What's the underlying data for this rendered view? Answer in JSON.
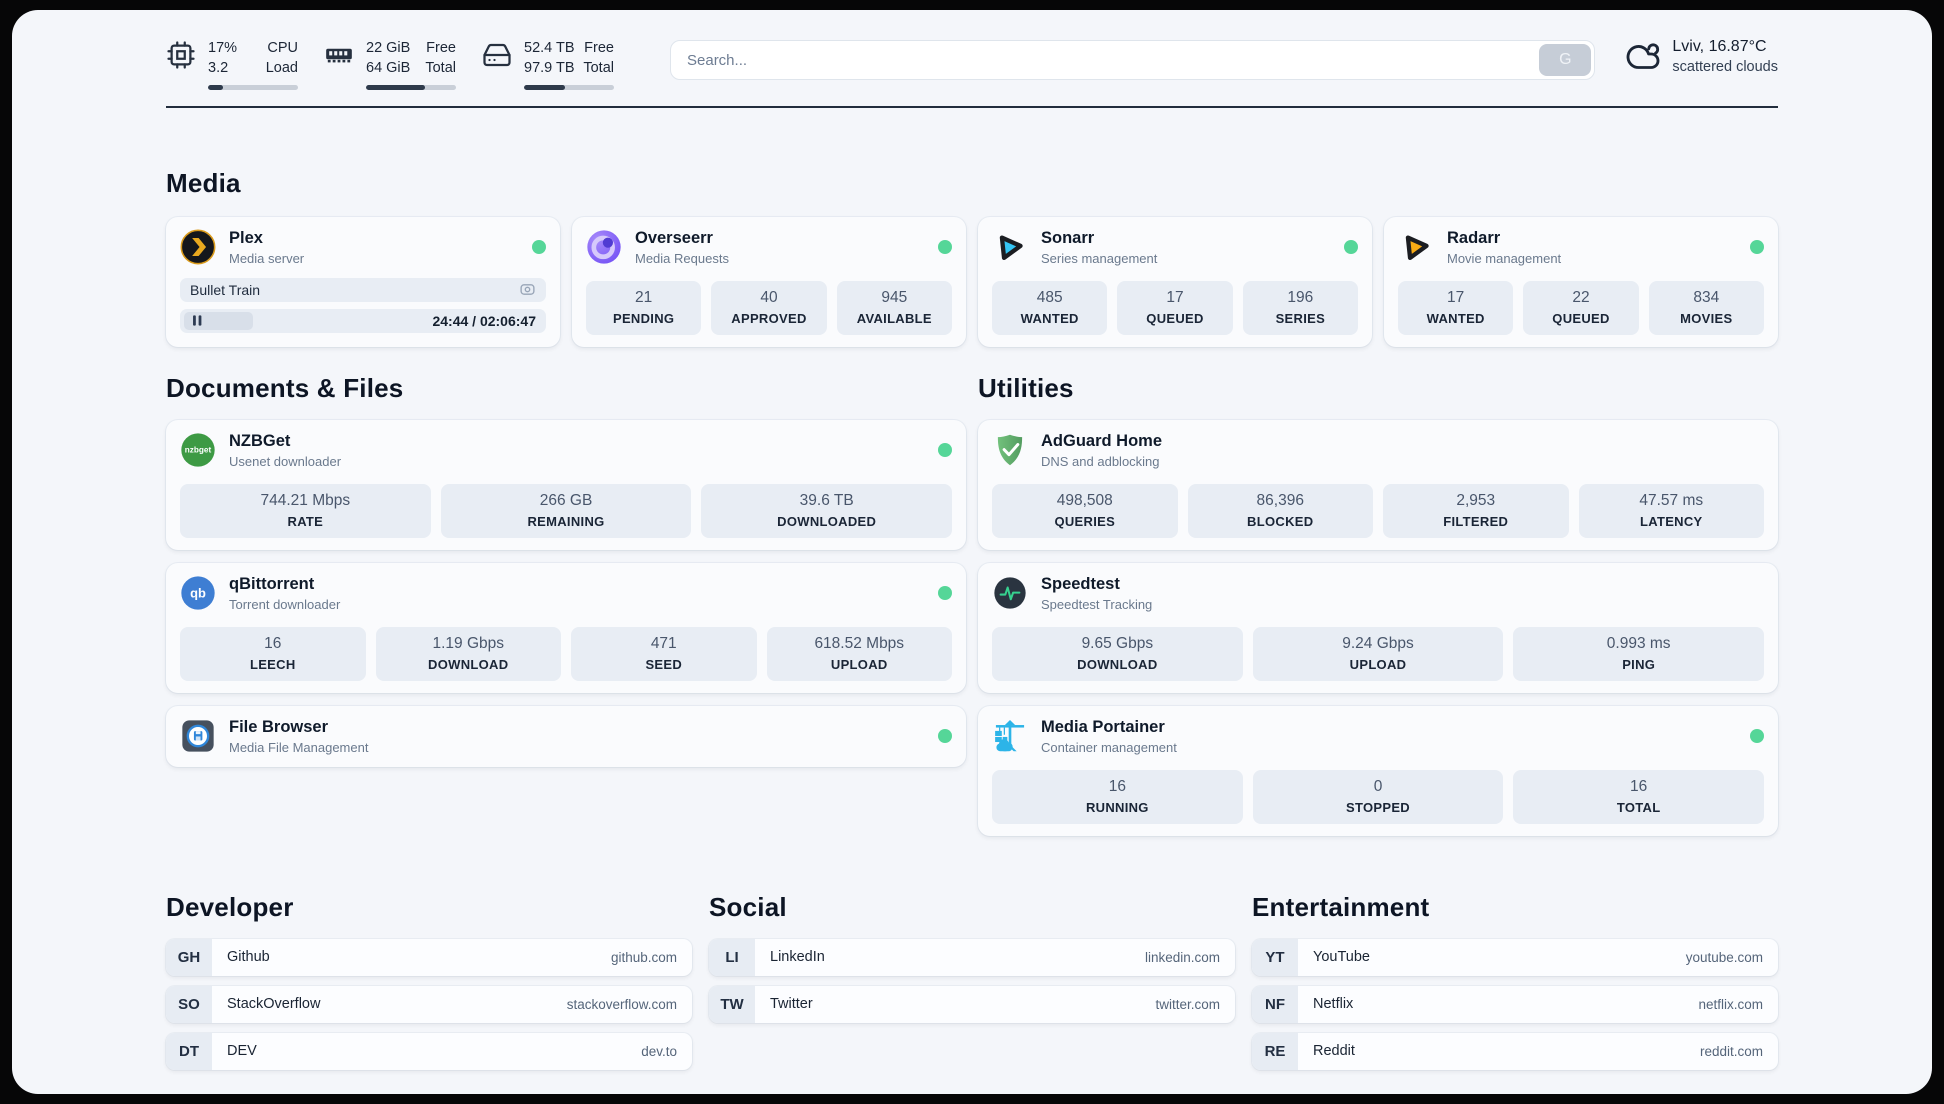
{
  "colors": {
    "status_online": "#55d698",
    "page_bg": "#f4f6fa",
    "stat_box_bg": "#e8edf4",
    "accent_dark": "#222d3d"
  },
  "header": {
    "cpu": {
      "icon": "cpu-icon",
      "value_top": "17%",
      "label_top": "CPU",
      "value_bottom": "3.2",
      "label_bottom": "Load",
      "progress_percent": 17
    },
    "memory": {
      "icon": "ram-icon",
      "value_top": "22 GiB",
      "label_top": "Free",
      "value_bottom": "64 GiB",
      "label_bottom": "Total",
      "progress_percent": 66
    },
    "disk": {
      "icon": "disk-icon",
      "value_top": "52.4 TB",
      "label_top": "Free",
      "value_bottom": "97.9 TB",
      "label_bottom": "Total",
      "progress_percent": 46
    },
    "search": {
      "placeholder": "Search...",
      "button_label": "G"
    },
    "weather": {
      "icon": "cloud-icon",
      "location_temp": "Lviv, 16.87°C",
      "condition": "scattered clouds"
    }
  },
  "sections": {
    "media": {
      "title": "Media"
    },
    "documents": {
      "title": "Documents & Files"
    },
    "utilities": {
      "title": "Utilities"
    },
    "developer": {
      "title": "Developer"
    },
    "social": {
      "title": "Social"
    },
    "entertainment": {
      "title": "Entertainment"
    }
  },
  "services": {
    "plex": {
      "icon": "plex-icon",
      "name": "Plex",
      "desc": "Media server",
      "status": "online",
      "now_playing": {
        "title": "Bullet Train",
        "time_display": "24:44 / 02:06:47",
        "position": "24:44",
        "duration": "02:06:47",
        "progress_percent": 19.6
      }
    },
    "overseerr": {
      "icon": "overseerr-icon",
      "name": "Overseerr",
      "desc": "Media Requests",
      "status": "online",
      "stats": [
        {
          "value": "21",
          "label": "PENDING"
        },
        {
          "value": "40",
          "label": "APPROVED"
        },
        {
          "value": "945",
          "label": "AVAILABLE"
        }
      ]
    },
    "sonarr": {
      "icon": "sonarr-icon",
      "name": "Sonarr",
      "desc": "Series management",
      "status": "online",
      "stats": [
        {
          "value": "485",
          "label": "WANTED"
        },
        {
          "value": "17",
          "label": "QUEUED"
        },
        {
          "value": "196",
          "label": "SERIES"
        }
      ]
    },
    "radarr": {
      "icon": "radarr-icon",
      "name": "Radarr",
      "desc": "Movie management",
      "status": "online",
      "stats": [
        {
          "value": "17",
          "label": "WANTED"
        },
        {
          "value": "22",
          "label": "QUEUED"
        },
        {
          "value": "834",
          "label": "MOVIES"
        }
      ]
    },
    "nzbget": {
      "icon": "nzbget-icon",
      "icon_label": "nzbget",
      "name": "NZBGet",
      "desc": "Usenet downloader",
      "status": "online",
      "stats": [
        {
          "value": "744.21 Mbps",
          "label": "RATE"
        },
        {
          "value": "266 GB",
          "label": "REMAINING"
        },
        {
          "value": "39.6 TB",
          "label": "DOWNLOADED"
        }
      ]
    },
    "qbittorrent": {
      "icon": "qbittorrent-icon",
      "icon_label": "qb",
      "name": "qBittorrent",
      "desc": "Torrent downloader",
      "status": "online",
      "stats": [
        {
          "value": "16",
          "label": "LEECH"
        },
        {
          "value": "1.19 Gbps",
          "label": "DOWNLOAD"
        },
        {
          "value": "471",
          "label": "SEED"
        },
        {
          "value": "618.52 Mbps",
          "label": "UPLOAD"
        }
      ]
    },
    "filebrowser": {
      "icon": "filebrowser-icon",
      "name": "File Browser",
      "desc": "Media File Management",
      "status": "online"
    },
    "adguard": {
      "icon": "adguard-icon",
      "name": "AdGuard Home",
      "desc": "DNS and adblocking",
      "stats": [
        {
          "value": "498,508",
          "label": "QUERIES"
        },
        {
          "value": "86,396",
          "label": "BLOCKED"
        },
        {
          "value": "2,953",
          "label": "FILTERED"
        },
        {
          "value": "47.57 ms",
          "label": "LATENCY"
        }
      ]
    },
    "speedtest": {
      "icon": "speedtest-icon",
      "name": "Speedtest",
      "desc": "Speedtest Tracking",
      "stats": [
        {
          "value": "9.65 Gbps",
          "label": "DOWNLOAD"
        },
        {
          "value": "9.24 Gbps",
          "label": "UPLOAD"
        },
        {
          "value": "0.993 ms",
          "label": "PING"
        }
      ]
    },
    "portainer": {
      "icon": "portainer-icon",
      "name": "Media Portainer",
      "desc": "Container management",
      "status": "online",
      "stats": [
        {
          "value": "16",
          "label": "RUNNING"
        },
        {
          "value": "0",
          "label": "STOPPED"
        },
        {
          "value": "16",
          "label": "TOTAL"
        }
      ]
    }
  },
  "bookmarks": {
    "developer": [
      {
        "abbr": "GH",
        "name": "Github",
        "url": "github.com"
      },
      {
        "abbr": "SO",
        "name": "StackOverflow",
        "url": "stackoverflow.com"
      },
      {
        "abbr": "DT",
        "name": "DEV",
        "url": "dev.to"
      }
    ],
    "social": [
      {
        "abbr": "LI",
        "name": "LinkedIn",
        "url": "linkedin.com"
      },
      {
        "abbr": "TW",
        "name": "Twitter",
        "url": "twitter.com"
      }
    ],
    "entertainment": [
      {
        "abbr": "YT",
        "name": "YouTube",
        "url": "youtube.com"
      },
      {
        "abbr": "NF",
        "name": "Netflix",
        "url": "netflix.com"
      },
      {
        "abbr": "RE",
        "name": "Reddit",
        "url": "reddit.com"
      }
    ]
  }
}
